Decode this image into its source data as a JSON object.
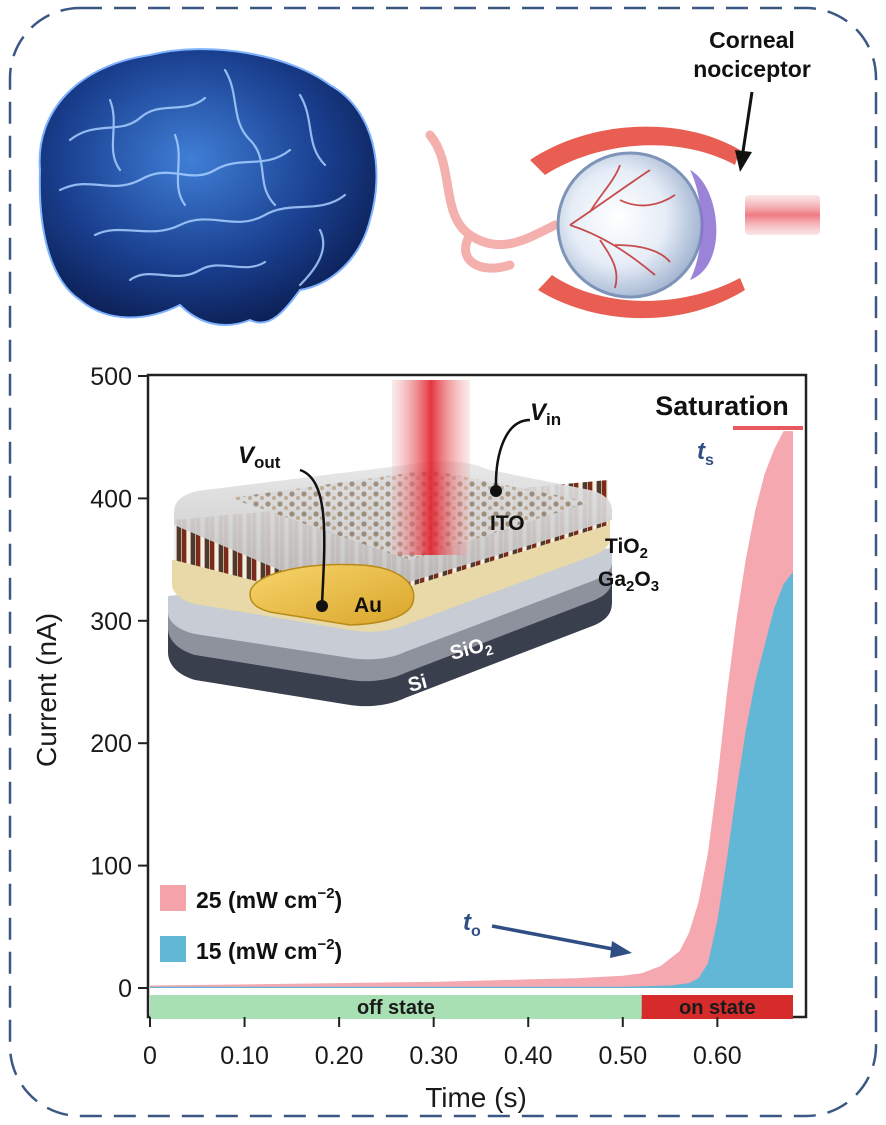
{
  "figure": {
    "callout": {
      "line1": "Corneal",
      "line2": "nociceptor"
    },
    "inset": {
      "v_out": "V",
      "v_out_sub": "out",
      "v_in": "V",
      "v_in_sub": "in",
      "layers": {
        "ito": "ITO",
        "tio2": "TiO",
        "tio2_sub": "2",
        "ga2o3_a": "Ga",
        "ga2o3_sub1": "2",
        "ga2o3_b": "O",
        "ga2o3_sub2": "3",
        "au": "Au",
        "sio2": "SiO",
        "sio2_sub": "2",
        "si": "Si"
      }
    },
    "annotations": {
      "saturation": "Saturation",
      "ts": "t",
      "ts_sub": "s",
      "to": "t",
      "to_sub": "o",
      "off_state": "off state",
      "on_state": "on state"
    },
    "colors": {
      "pink": "#f4a3ab",
      "blue": "#63b7d6",
      "green": "#a8e0b3",
      "red": "#d62b2b",
      "dash": "#3b5784"
    }
  },
  "chart_data": {
    "type": "area",
    "xlabel": "Time (s)",
    "ylabel": "Current (nA)",
    "xlim": [
      0,
      0.68
    ],
    "ylim": [
      0,
      500
    ],
    "xticks": [
      "0",
      "0.10",
      "0.20",
      "0.30",
      "0.40",
      "0.50",
      "0.60"
    ],
    "xtick_values": [
      0,
      0.1,
      0.2,
      0.3,
      0.4,
      0.5,
      0.6
    ],
    "yticks": [
      "0",
      "100",
      "200",
      "300",
      "400",
      "500"
    ],
    "ytick_values": [
      0,
      100,
      200,
      300,
      400,
      500
    ],
    "series": [
      {
        "name": "25 (mW cm⁻²)",
        "legend_main": "25 (mW cm",
        "legend_sup": "−2",
        "legend_end": ")",
        "color": "#f4a3ab",
        "x": [
          0,
          0.1,
          0.2,
          0.3,
          0.4,
          0.45,
          0.5,
          0.52,
          0.54,
          0.56,
          0.57,
          0.58,
          0.59,
          0.6,
          0.61,
          0.62,
          0.63,
          0.64,
          0.65,
          0.66,
          0.67,
          0.68
        ],
        "y": [
          2,
          3,
          4,
          5,
          7,
          8,
          10,
          12,
          18,
          30,
          45,
          70,
          110,
          170,
          240,
          300,
          350,
          390,
          420,
          440,
          455,
          455
        ]
      },
      {
        "name": "15 (mW cm⁻²)",
        "legend_main": "15 (mW cm",
        "legend_sup": "−2",
        "legend_end": ")",
        "color": "#63b7d6",
        "x": [
          0,
          0.1,
          0.2,
          0.3,
          0.4,
          0.5,
          0.55,
          0.57,
          0.58,
          0.59,
          0.6,
          0.61,
          0.62,
          0.63,
          0.64,
          0.65,
          0.66,
          0.67,
          0.68
        ],
        "y": [
          1,
          1,
          1,
          1,
          1,
          1,
          2,
          4,
          8,
          20,
          55,
          105,
          160,
          210,
          250,
          280,
          310,
          330,
          340
        ]
      }
    ],
    "state_bar": {
      "off_end": 0.52,
      "on_end": 0.68
    },
    "markers": {
      "to_x": 0.52,
      "ts_x": 0.67
    }
  }
}
